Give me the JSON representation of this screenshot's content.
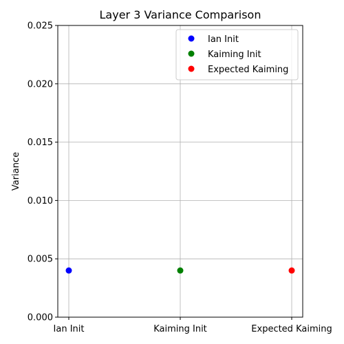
{
  "chart_data": {
    "type": "scatter",
    "title": "Layer 3 Variance Comparison",
    "xlabel": "",
    "ylabel": "Variance",
    "categories": [
      "Ian Init",
      "Kaiming Init",
      "Expected Kaiming"
    ],
    "ylim": [
      0,
      0.025
    ],
    "yticks": [
      "0.000",
      "0.005",
      "0.010",
      "0.015",
      "0.020",
      "0.025"
    ],
    "grid": true,
    "legend_position": "top-right",
    "series": [
      {
        "name": "Ian Init",
        "color": "#0000ff",
        "points": [
          {
            "x": "Ian Init",
            "y": 0.004
          }
        ]
      },
      {
        "name": "Kaiming Init",
        "color": "#008000",
        "points": [
          {
            "x": "Kaiming Init",
            "y": 0.004
          }
        ]
      },
      {
        "name": "Expected Kaiming",
        "color": "#ff0000",
        "points": [
          {
            "x": "Expected Kaiming",
            "y": 0.004
          }
        ]
      }
    ]
  }
}
